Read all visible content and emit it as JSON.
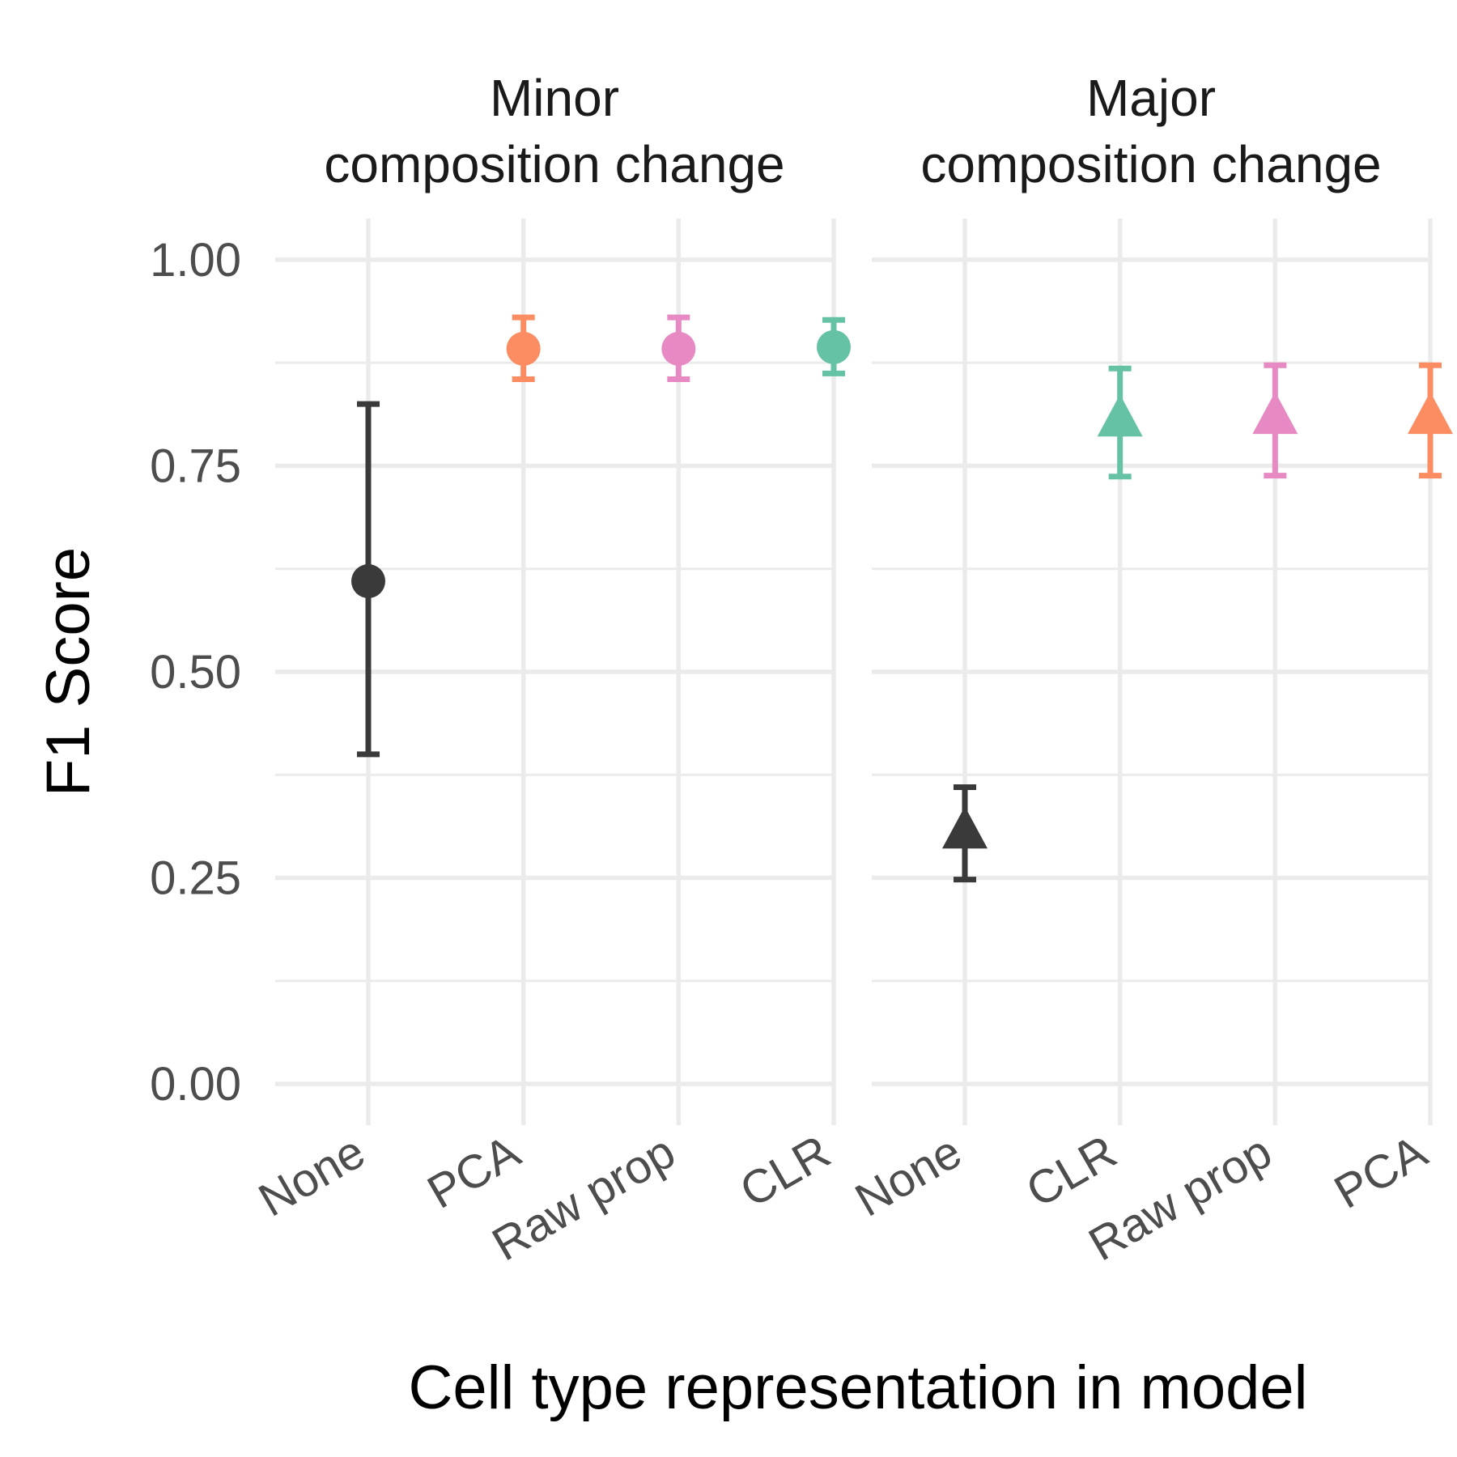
{
  "chart_data": {
    "type": "scatter",
    "xlabel": "Cell type representation in model",
    "ylabel": "F1 Score",
    "ylim": [
      -0.05,
      1.05
    ],
    "yticks": [
      "0.00",
      "0.25",
      "0.50",
      "0.75",
      "1.00"
    ],
    "grid": true,
    "legend": "none",
    "panels": [
      {
        "strip": [
          "Minor",
          "composition change"
        ],
        "shape": "circle",
        "categories": [
          "None",
          "PCA",
          "Raw prop",
          "CLR"
        ],
        "points": [
          {
            "category": "None",
            "value": 0.61,
            "lower": 0.4,
            "upper": 0.825,
            "color": "#3a3a3a"
          },
          {
            "category": "PCA",
            "value": 0.892,
            "lower": 0.855,
            "upper": 0.93,
            "color": "#fc8d62"
          },
          {
            "category": "Raw prop",
            "value": 0.892,
            "lower": 0.855,
            "upper": 0.93,
            "color": "#e78ac3"
          },
          {
            "category": "CLR",
            "value": 0.894,
            "lower": 0.862,
            "upper": 0.927,
            "color": "#66c2a5"
          }
        ]
      },
      {
        "strip": [
          "Major",
          "composition change"
        ],
        "shape": "triangle",
        "categories": [
          "None",
          "CLR",
          "Raw prop",
          "PCA"
        ],
        "points": [
          {
            "category": "None",
            "value": 0.305,
            "lower": 0.248,
            "upper": 0.36,
            "color": "#3a3a3a"
          },
          {
            "category": "CLR",
            "value": 0.805,
            "lower": 0.737,
            "upper": 0.868,
            "color": "#66c2a5"
          },
          {
            "category": "Raw prop",
            "value": 0.808,
            "lower": 0.738,
            "upper": 0.872,
            "color": "#e78ac3"
          },
          {
            "category": "PCA",
            "value": 0.808,
            "lower": 0.738,
            "upper": 0.872,
            "color": "#fc8d62"
          }
        ]
      }
    ]
  }
}
